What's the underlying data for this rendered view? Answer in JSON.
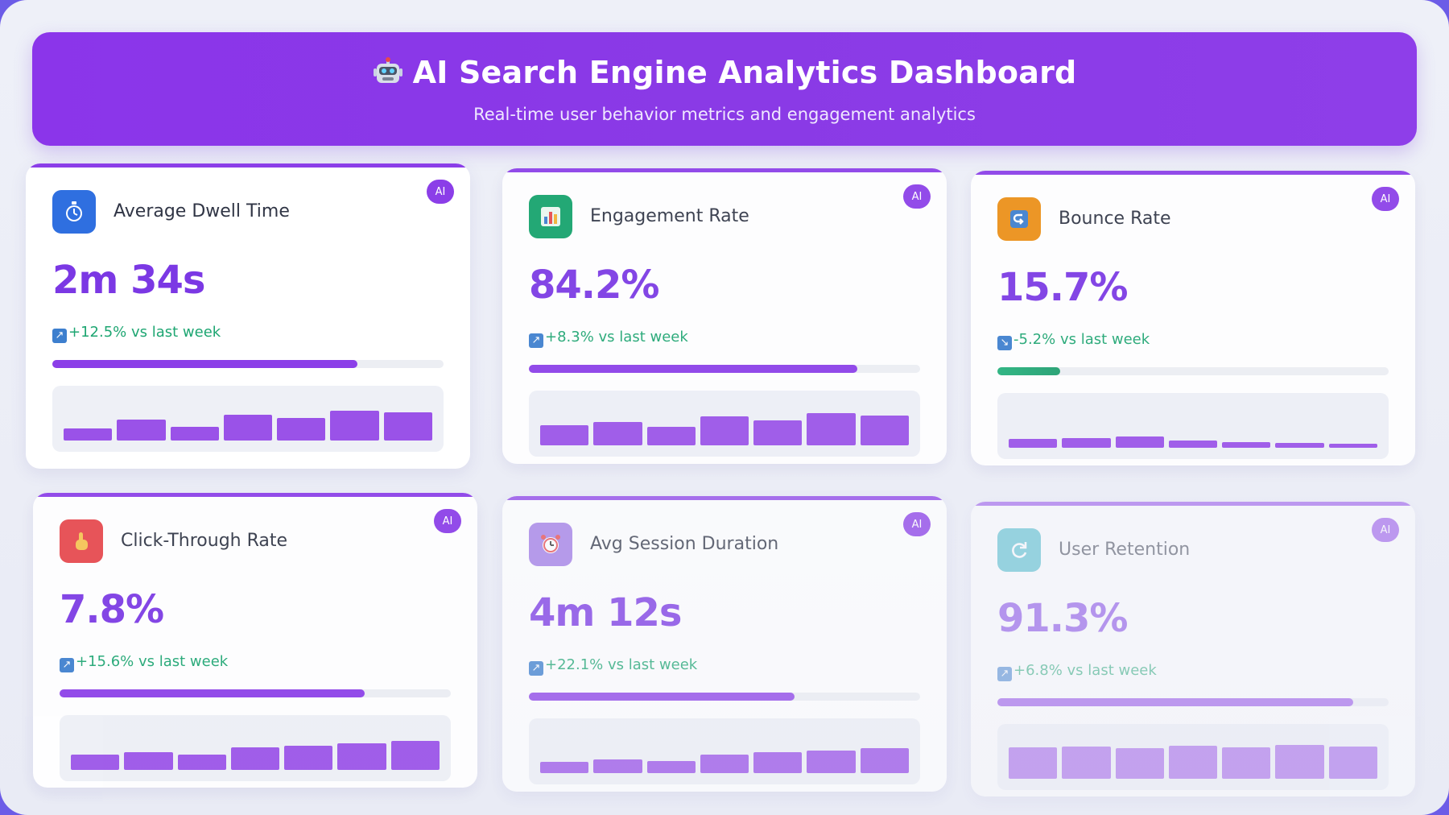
{
  "header": {
    "title": "AI Search Engine Analytics Dashboard",
    "subtitle": "Real-time user behavior metrics and engagement analytics",
    "title_icon": "robot-icon"
  },
  "badge_label": "AI",
  "cards": [
    {
      "title": "Average Dwell Time",
      "icon": "stopwatch-icon",
      "icon_color": "#2f6fe0",
      "value": "2m 34s",
      "change_arrow": "↗",
      "change_text": "+12.5% vs last week",
      "progress": 0.78,
      "progress_color": "#8b3ee8",
      "spark": [
        0.28,
        0.48,
        0.32,
        0.6,
        0.52,
        0.68,
        0.64
      ]
    },
    {
      "title": "Engagement Rate",
      "icon": "bar-chart-icon",
      "icon_color": "#12a36a",
      "value": "84.2%",
      "change_arrow": "↗",
      "change_text": "+8.3% vs last week",
      "progress": 0.84,
      "progress_color": "#8b3ee8",
      "spark": [
        0.46,
        0.54,
        0.42,
        0.66,
        0.58,
        0.74,
        0.68
      ]
    },
    {
      "title": "Bounce Rate",
      "icon": "return-arrow-icon",
      "icon_color": "#ec8f15",
      "value": "15.7%",
      "change_arrow": "↘",
      "change_text": "-5.2% vs last week",
      "progress": 0.16,
      "progress_color": "green",
      "spark": [
        0.2,
        0.22,
        0.26,
        0.16,
        0.13,
        0.11,
        0.09
      ]
    },
    {
      "title": "Click-Through Rate",
      "icon": "pointing-hand-icon",
      "icon_color": "#e7484c",
      "value": "7.8%",
      "change_arrow": "↗",
      "change_text": "+15.6% vs last week",
      "progress": 0.78,
      "progress_color": "#8b3ee8",
      "spark": [
        0.36,
        0.4,
        0.36,
        0.52,
        0.56,
        0.62,
        0.66
      ]
    },
    {
      "title": "Avg Session Duration",
      "icon": "alarm-clock-icon",
      "icon_color": "#a17be6",
      "value": "4m 12s",
      "change_arrow": "↗",
      "change_text": "+22.1% vs last week",
      "progress": 0.68,
      "progress_color": "#8b3ee8",
      "spark": [
        0.26,
        0.32,
        0.28,
        0.42,
        0.48,
        0.52,
        0.58
      ]
    },
    {
      "title": "User Retention",
      "icon": "refresh-icon",
      "icon_color": "#3cb6c8",
      "value": "91.3%",
      "change_arrow": "↗",
      "change_text": "+6.8% vs last week",
      "progress": 0.91,
      "progress_color": "#8b3ee8",
      "spark": [
        0.72,
        0.74,
        0.7,
        0.76,
        0.72,
        0.78,
        0.74
      ]
    }
  ]
}
